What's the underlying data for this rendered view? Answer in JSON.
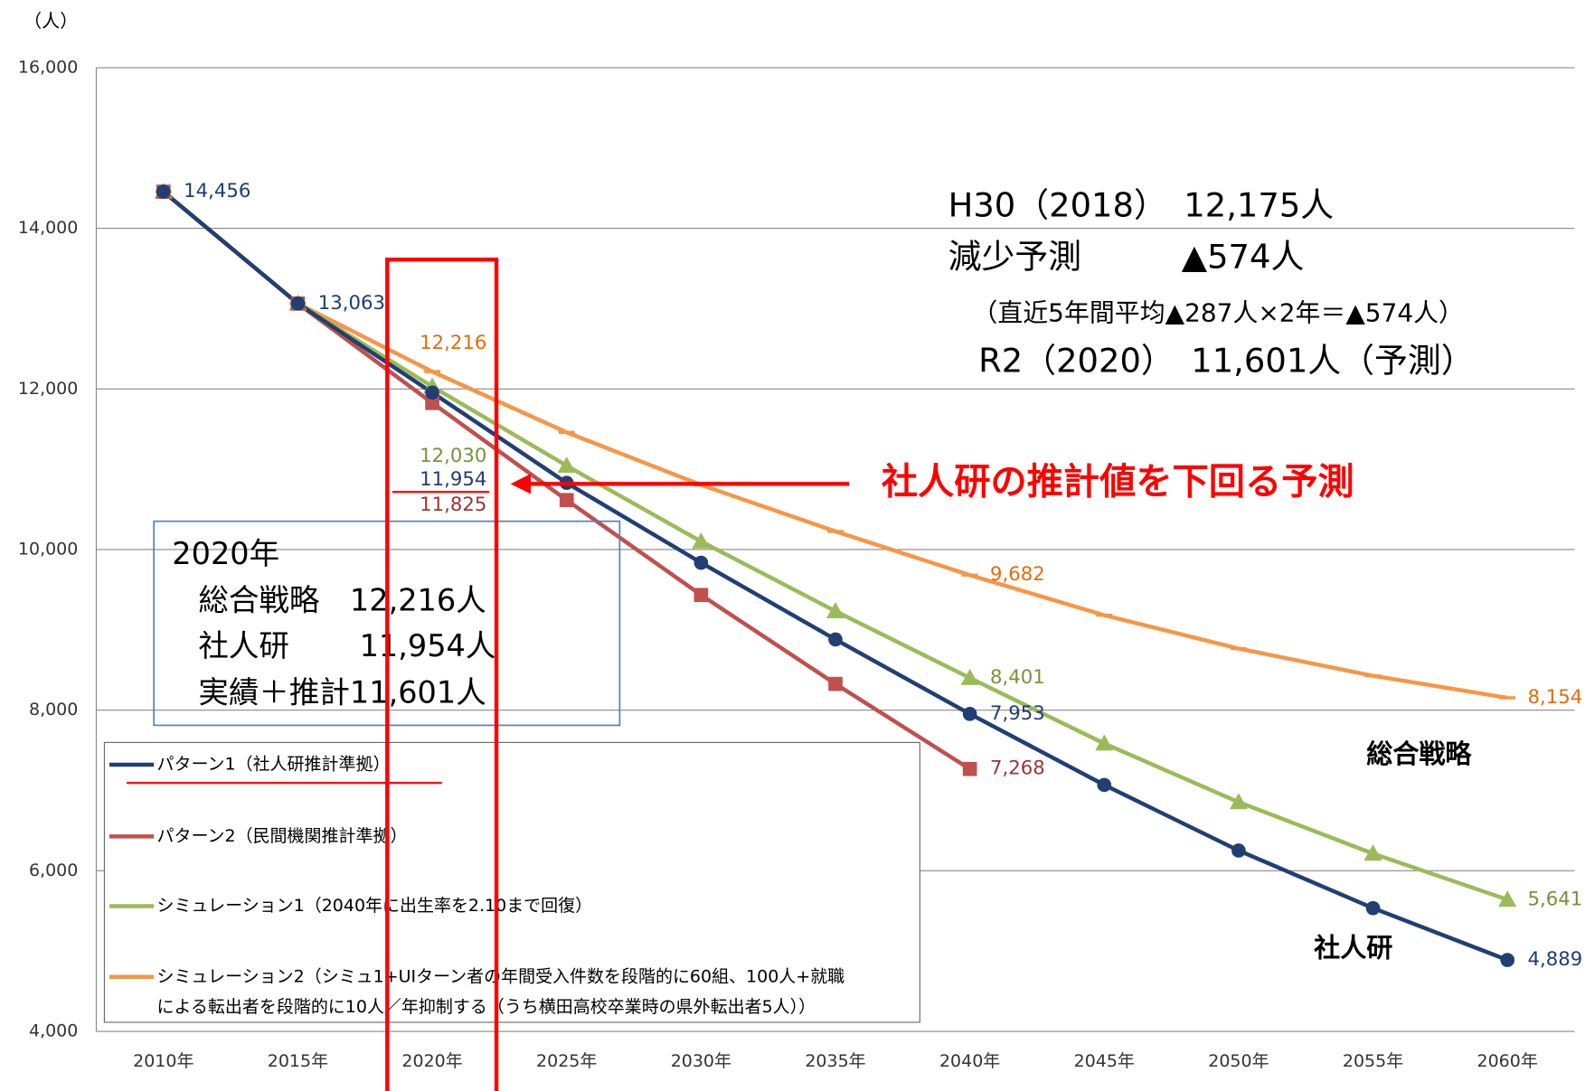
{
  "chart_data": {
    "type": "line",
    "y_axis_label": "（人）",
    "categories": [
      "2010年",
      "2015年",
      "2020年",
      "2025年",
      "2030年",
      "2035年",
      "2040年",
      "2045年",
      "2050年",
      "2055年",
      "2060年"
    ],
    "ylim": [
      4000,
      16000
    ],
    "yticks": [
      {
        "value": 4000,
        "label": "4,000"
      },
      {
        "value": 6000,
        "label": "6,000"
      },
      {
        "value": 8000,
        "label": "8,000"
      },
      {
        "value": 10000,
        "label": "10,000"
      },
      {
        "value": 12000,
        "label": "12,000"
      },
      {
        "value": 14000,
        "label": "14,000"
      },
      {
        "value": 16000,
        "label": "16,000"
      }
    ],
    "grid": true,
    "series": [
      {
        "name": "パターン1（社人研推計準拠）",
        "color": "#203f74",
        "marker": "circle",
        "label_color": "#1f3d73",
        "values": [
          14456,
          13063,
          11954,
          10830,
          9836,
          8880,
          7953,
          7069,
          6252,
          5535,
          4889
        ],
        "value_labels": [
          "14,456",
          "13,063",
          "11,954",
          null,
          null,
          null,
          "7,953",
          null,
          null,
          null,
          "4,889"
        ]
      },
      {
        "name": "パターン2（民間機関推計準拠）",
        "color": "#c0504d",
        "marker": "square",
        "label_color": "#953735",
        "values": [
          14456,
          13063,
          11825,
          10616,
          9434,
          8327,
          7268,
          null,
          null,
          null,
          null
        ],
        "value_labels": [
          null,
          null,
          "11,825",
          null,
          null,
          null,
          "7,268",
          null,
          null,
          null,
          null
        ]
      },
      {
        "name": "シミュレーション1（2040年に出生率を2.10まで回復）",
        "color": "#9bbb59",
        "marker": "triangle",
        "label_color": "#77933c",
        "values": [
          14456,
          13063,
          12030,
          11044,
          10101,
          9233,
          8401,
          7585,
          6855,
          6214,
          5641
        ],
        "value_labels": [
          null,
          null,
          "12,030",
          null,
          null,
          null,
          "8,401",
          null,
          null,
          null,
          "5,641"
        ]
      },
      {
        "name": "シミュレーション2（シミュ1+UIターン者の年間受入件数を段階的に60組、100人+就職\nによる転出者を段階的に10人／年抑制する（うち横田高校卒業時の県外転出者5人））",
        "color": "#f79646",
        "marker": "dash",
        "label_color": "#e46c0a",
        "values": [
          14456,
          13063,
          12216,
          11459,
          10805,
          10226,
          9682,
          9182,
          8767,
          8428,
          8154
        ],
        "value_labels": [
          null,
          null,
          "12,216",
          null,
          null,
          null,
          "9,682",
          null,
          null,
          null,
          "8,154"
        ]
      }
    ],
    "annotations": {
      "h30": "H30（2018）　12,175人",
      "decrease": "減少予測　　　▲574人",
      "calc": "（直近5年間平均▲287人×2年＝▲574人）",
      "r2": "R2（2020）　11,601人（予測）",
      "arrow_text": "社人研の推計値を下回る予測",
      "box_title": "2020年",
      "box_line1": "総合戦略　12,216人",
      "box_line2": "社人研　　 11,954人",
      "box_line3": "実績＋推計11,601人",
      "label_sogo": "総合戦略",
      "label_shajinken": "社人研"
    }
  }
}
